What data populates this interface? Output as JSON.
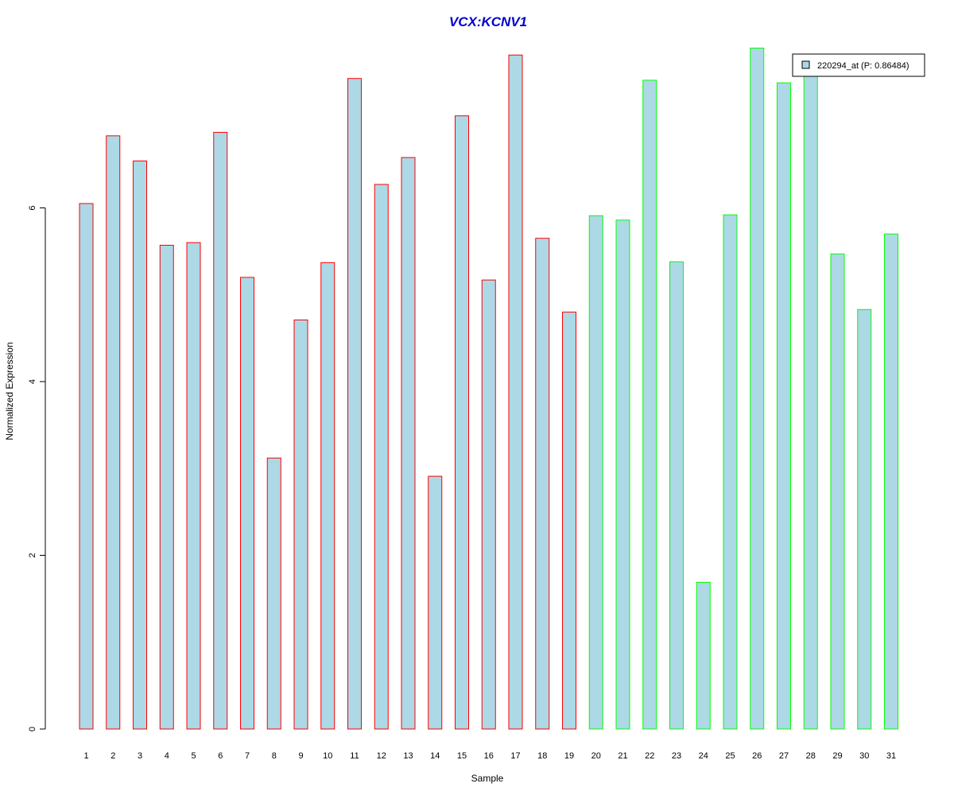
{
  "chart_data": {
    "type": "bar",
    "title": "VCX:KCNV1",
    "xlabel": "Sample",
    "ylabel": "Normalized Expression",
    "ylim": [
      0,
      7.85
    ],
    "yticks": [
      0,
      2,
      4,
      6
    ],
    "categories": [
      "1",
      "2",
      "3",
      "4",
      "5",
      "6",
      "7",
      "8",
      "9",
      "10",
      "11",
      "12",
      "13",
      "14",
      "15",
      "16",
      "17",
      "18",
      "19",
      "20",
      "21",
      "22",
      "23",
      "24",
      "25",
      "26",
      "27",
      "28",
      "29",
      "30",
      "31"
    ],
    "values": [
      6.05,
      6.83,
      6.54,
      5.57,
      5.6,
      6.87,
      5.2,
      3.12,
      4.71,
      5.37,
      7.49,
      6.27,
      6.58,
      2.91,
      7.06,
      5.17,
      7.76,
      5.65,
      4.8,
      5.91,
      5.86,
      7.47,
      5.38,
      1.69,
      5.92,
      7.84,
      7.44,
      7.55,
      5.47,
      4.83,
      5.7
    ],
    "groups": [
      "red",
      "red",
      "red",
      "red",
      "red",
      "red",
      "red",
      "red",
      "red",
      "red",
      "red",
      "red",
      "red",
      "red",
      "red",
      "red",
      "red",
      "red",
      "red",
      "green",
      "green",
      "green",
      "green",
      "green",
      "green",
      "green",
      "green",
      "green",
      "green",
      "green",
      "green"
    ],
    "colors": {
      "fill": "#add8e6",
      "red": "#ff0000",
      "green": "#00ff00",
      "title": "#0000cc"
    },
    "legend": {
      "label": "220294_at (P: 0.86484)",
      "position": "top-right"
    },
    "grid": false
  }
}
